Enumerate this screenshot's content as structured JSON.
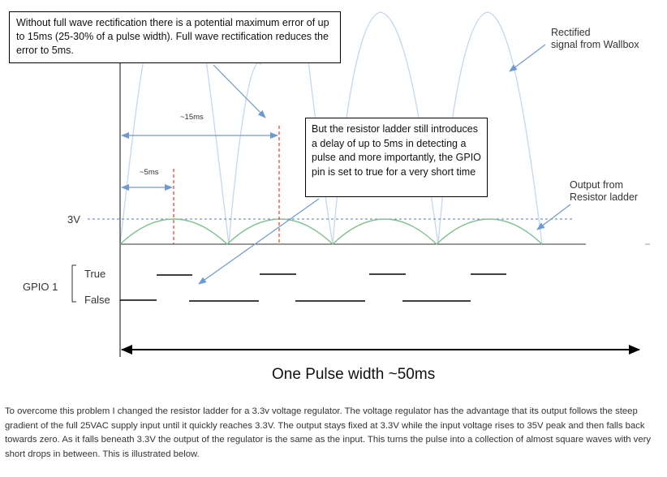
{
  "callouts": {
    "rectification": "Without full wave rectification there is a potential maximum error of up to 15ms (25-30% of a pulse width). Full wave rectification reduces  the error to 5ms.",
    "resistor_ladder": "But the resistor ladder still introduces a delay of up to 5ms in detecting a pulse and more importantly, the GPIO pin is set to true for a very short time"
  },
  "labels": {
    "rectified_line1": "Rectified",
    "rectified_line2": "signal from Wallbox",
    "output_line1": "Output from",
    "output_line2": "Resistor ladder",
    "voltage": "3V",
    "gpio": "GPIO 1",
    "true": "True",
    "false": "False",
    "delay_15": "~15ms",
    "delay_5": "~5ms",
    "pulse_width": "One Pulse width ~50ms"
  },
  "paragraph": "To overcome this problem I changed the resistor ladder for a 3.3v voltage regulator.  The voltage regulator has the advantage that its output follows the steep gradient of the full 25VAC supply input until it quickly reaches 3.3V.  The output stays fixed at 3.3V while the input voltage rises to 35V peak and then falls back towards zero.  As it falls beneath 3.3V the output of the regulator is the same as the input.  This turns the pulse into a collection of almost square waves with very short drops in between.  This is illustrated below.",
  "colors": {
    "rectified_wave": "#c5d7ec",
    "output_wave": "#7fc28f",
    "marker_red": "#e03b2f",
    "threshold_blue": "#4f7fc0",
    "arrow_blue": "#6d9ad2",
    "axis": "#333333"
  }
}
